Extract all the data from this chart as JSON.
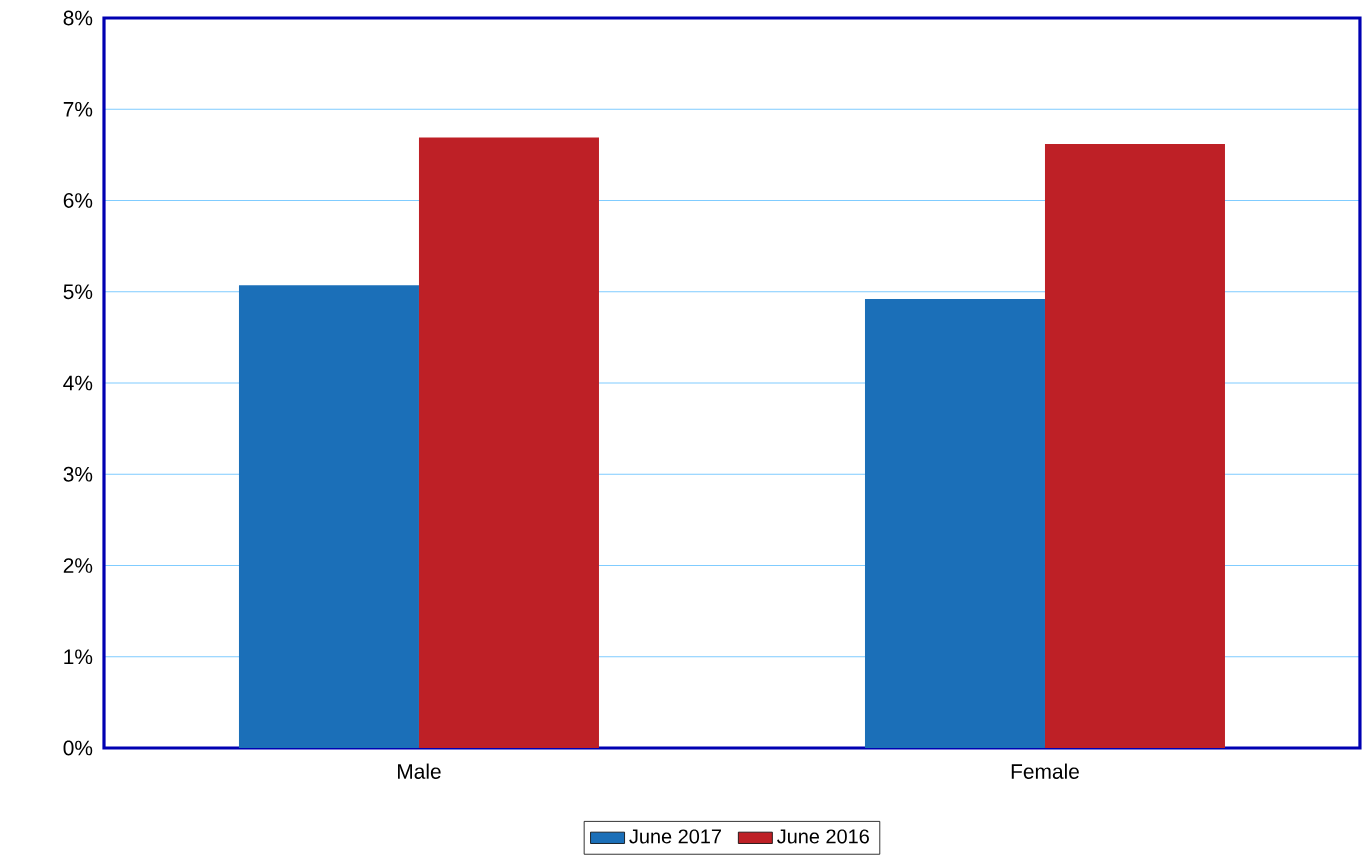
{
  "chart_data": {
    "type": "bar",
    "categories": [
      "Male",
      "Female"
    ],
    "series": [
      {
        "name": "June 2017",
        "color": "#1b6fb8",
        "values": [
          5.07,
          4.92
        ]
      },
      {
        "name": "June 2016",
        "color": "#be2026",
        "values": [
          6.69,
          6.62
        ]
      }
    ],
    "ylim": [
      0,
      8
    ],
    "yticks": [
      {
        "value": 0,
        "label": "0%"
      },
      {
        "value": 1,
        "label": "1%"
      },
      {
        "value": 2,
        "label": "2%"
      },
      {
        "value": 3,
        "label": "3%"
      },
      {
        "value": 4,
        "label": "4%"
      },
      {
        "value": 5,
        "label": "5%"
      },
      {
        "value": 6,
        "label": "6%"
      },
      {
        "value": 7,
        "label": "7%"
      },
      {
        "value": 8,
        "label": "8%"
      }
    ],
    "grid": "y",
    "legend": "bottom"
  }
}
